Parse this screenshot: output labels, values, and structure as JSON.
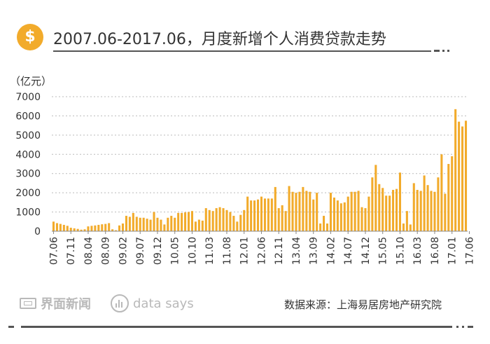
{
  "header": {
    "icon": "dollar-coin-icon",
    "icon_symbol": "$",
    "title": "2007.06-2017.06，月度新增个人消费贷款走势"
  },
  "colors": {
    "bar": "#f2ab2b",
    "grid": "#bbbbbb",
    "accent": "#f2ab2b",
    "text": "#333333"
  },
  "chart_data": {
    "type": "bar",
    "unit_label": "（亿元）",
    "ylim": [
      0,
      7000
    ],
    "yticks": [
      0,
      1000,
      2000,
      3000,
      4000,
      5000,
      6000,
      7000
    ],
    "grid": true,
    "x_tick_labels": [
      "07.06",
      "07.11",
      "08.04",
      "08.09",
      "09.02",
      "09.07",
      "09.12",
      "10.05",
      "10.10",
      "11.03",
      "11.08",
      "12.01",
      "12.06",
      "12.11",
      "13.04",
      "13.09",
      "14.02",
      "14.07",
      "14.12",
      "15.05",
      "15.10",
      "16.03",
      "16.08",
      "17.01",
      "17.06"
    ],
    "values": [
      500,
      420,
      380,
      330,
      280,
      180,
      150,
      120,
      80,
      100,
      250,
      280,
      300,
      330,
      360,
      380,
      420,
      100,
      50,
      300,
      400,
      800,
      750,
      950,
      750,
      700,
      700,
      650,
      600,
      1000,
      700,
      600,
      350,
      700,
      800,
      700,
      950,
      950,
      980,
      1000,
      1050,
      500,
      600,
      550,
      1200,
      1100,
      1050,
      1200,
      1250,
      1200,
      1100,
      1000,
      800,
      500,
      850,
      1100,
      1800,
      1600,
      1600,
      1650,
      1800,
      1700,
      1700,
      1700,
      2300,
      1200,
      1350,
      1050,
      2350,
      2050,
      2000,
      2050,
      2300,
      2100,
      2050,
      1650,
      2000,
      400,
      800,
      400,
      2000,
      1750,
      1600,
      1450,
      1500,
      1800,
      2050,
      2050,
      2100,
      1250,
      1200,
      1800,
      2800,
      3450,
      2450,
      2250,
      1850,
      1850,
      2150,
      2200,
      3050,
      400,
      1050,
      350,
      2500,
      2150,
      2100,
      2900,
      2400,
      2100,
      2050,
      2800,
      4000,
      1950,
      3500,
      3900,
      6350,
      5700,
      5450,
      5750
    ]
  },
  "footer": {
    "brand_logo_icon": "jiemian-logo-icon",
    "brand": "界面新闻",
    "datasays_icon": "data-says-logo-icon",
    "datasays": "data says",
    "source": "数据来源：上海易居房地产研究院"
  }
}
